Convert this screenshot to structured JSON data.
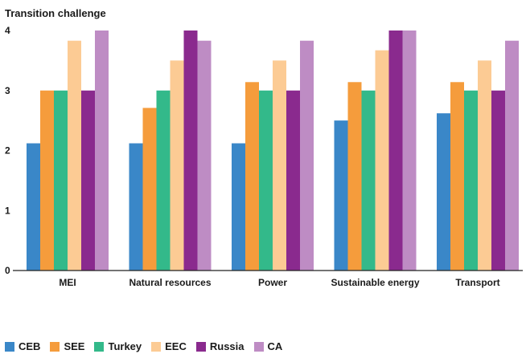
{
  "chart_data": {
    "type": "bar",
    "ylabel": "Transition challenge",
    "ylim": [
      0,
      4
    ],
    "yticks": [
      "0",
      "1",
      "2",
      "3",
      "4"
    ],
    "categories": [
      "MEI",
      "Natural resources",
      "Power",
      "Sustainable energy",
      "Transport"
    ],
    "series": [
      {
        "name": "CEB",
        "color": "#3a87c8",
        "values": [
          2.12,
          2.12,
          2.12,
          2.5,
          2.62
        ]
      },
      {
        "name": "SEE",
        "color": "#f59c3c",
        "values": [
          3.0,
          2.71,
          3.14,
          3.14,
          3.14
        ]
      },
      {
        "name": "Turkey",
        "color": "#33b98a",
        "values": [
          3.0,
          3.0,
          3.0,
          3.0,
          3.0
        ]
      },
      {
        "name": "EEC",
        "color": "#fccb94",
        "values": [
          3.83,
          3.5,
          3.5,
          3.67,
          3.5
        ]
      },
      {
        "name": "Russia",
        "color": "#8a2a8e",
        "values": [
          3.0,
          4.0,
          3.0,
          4.0,
          3.0
        ]
      },
      {
        "name": "CA",
        "color": "#be8cc4",
        "values": [
          4.0,
          3.83,
          3.83,
          4.0,
          3.83
        ]
      }
    ],
    "grid": false,
    "legend_position": "bottom-left"
  }
}
